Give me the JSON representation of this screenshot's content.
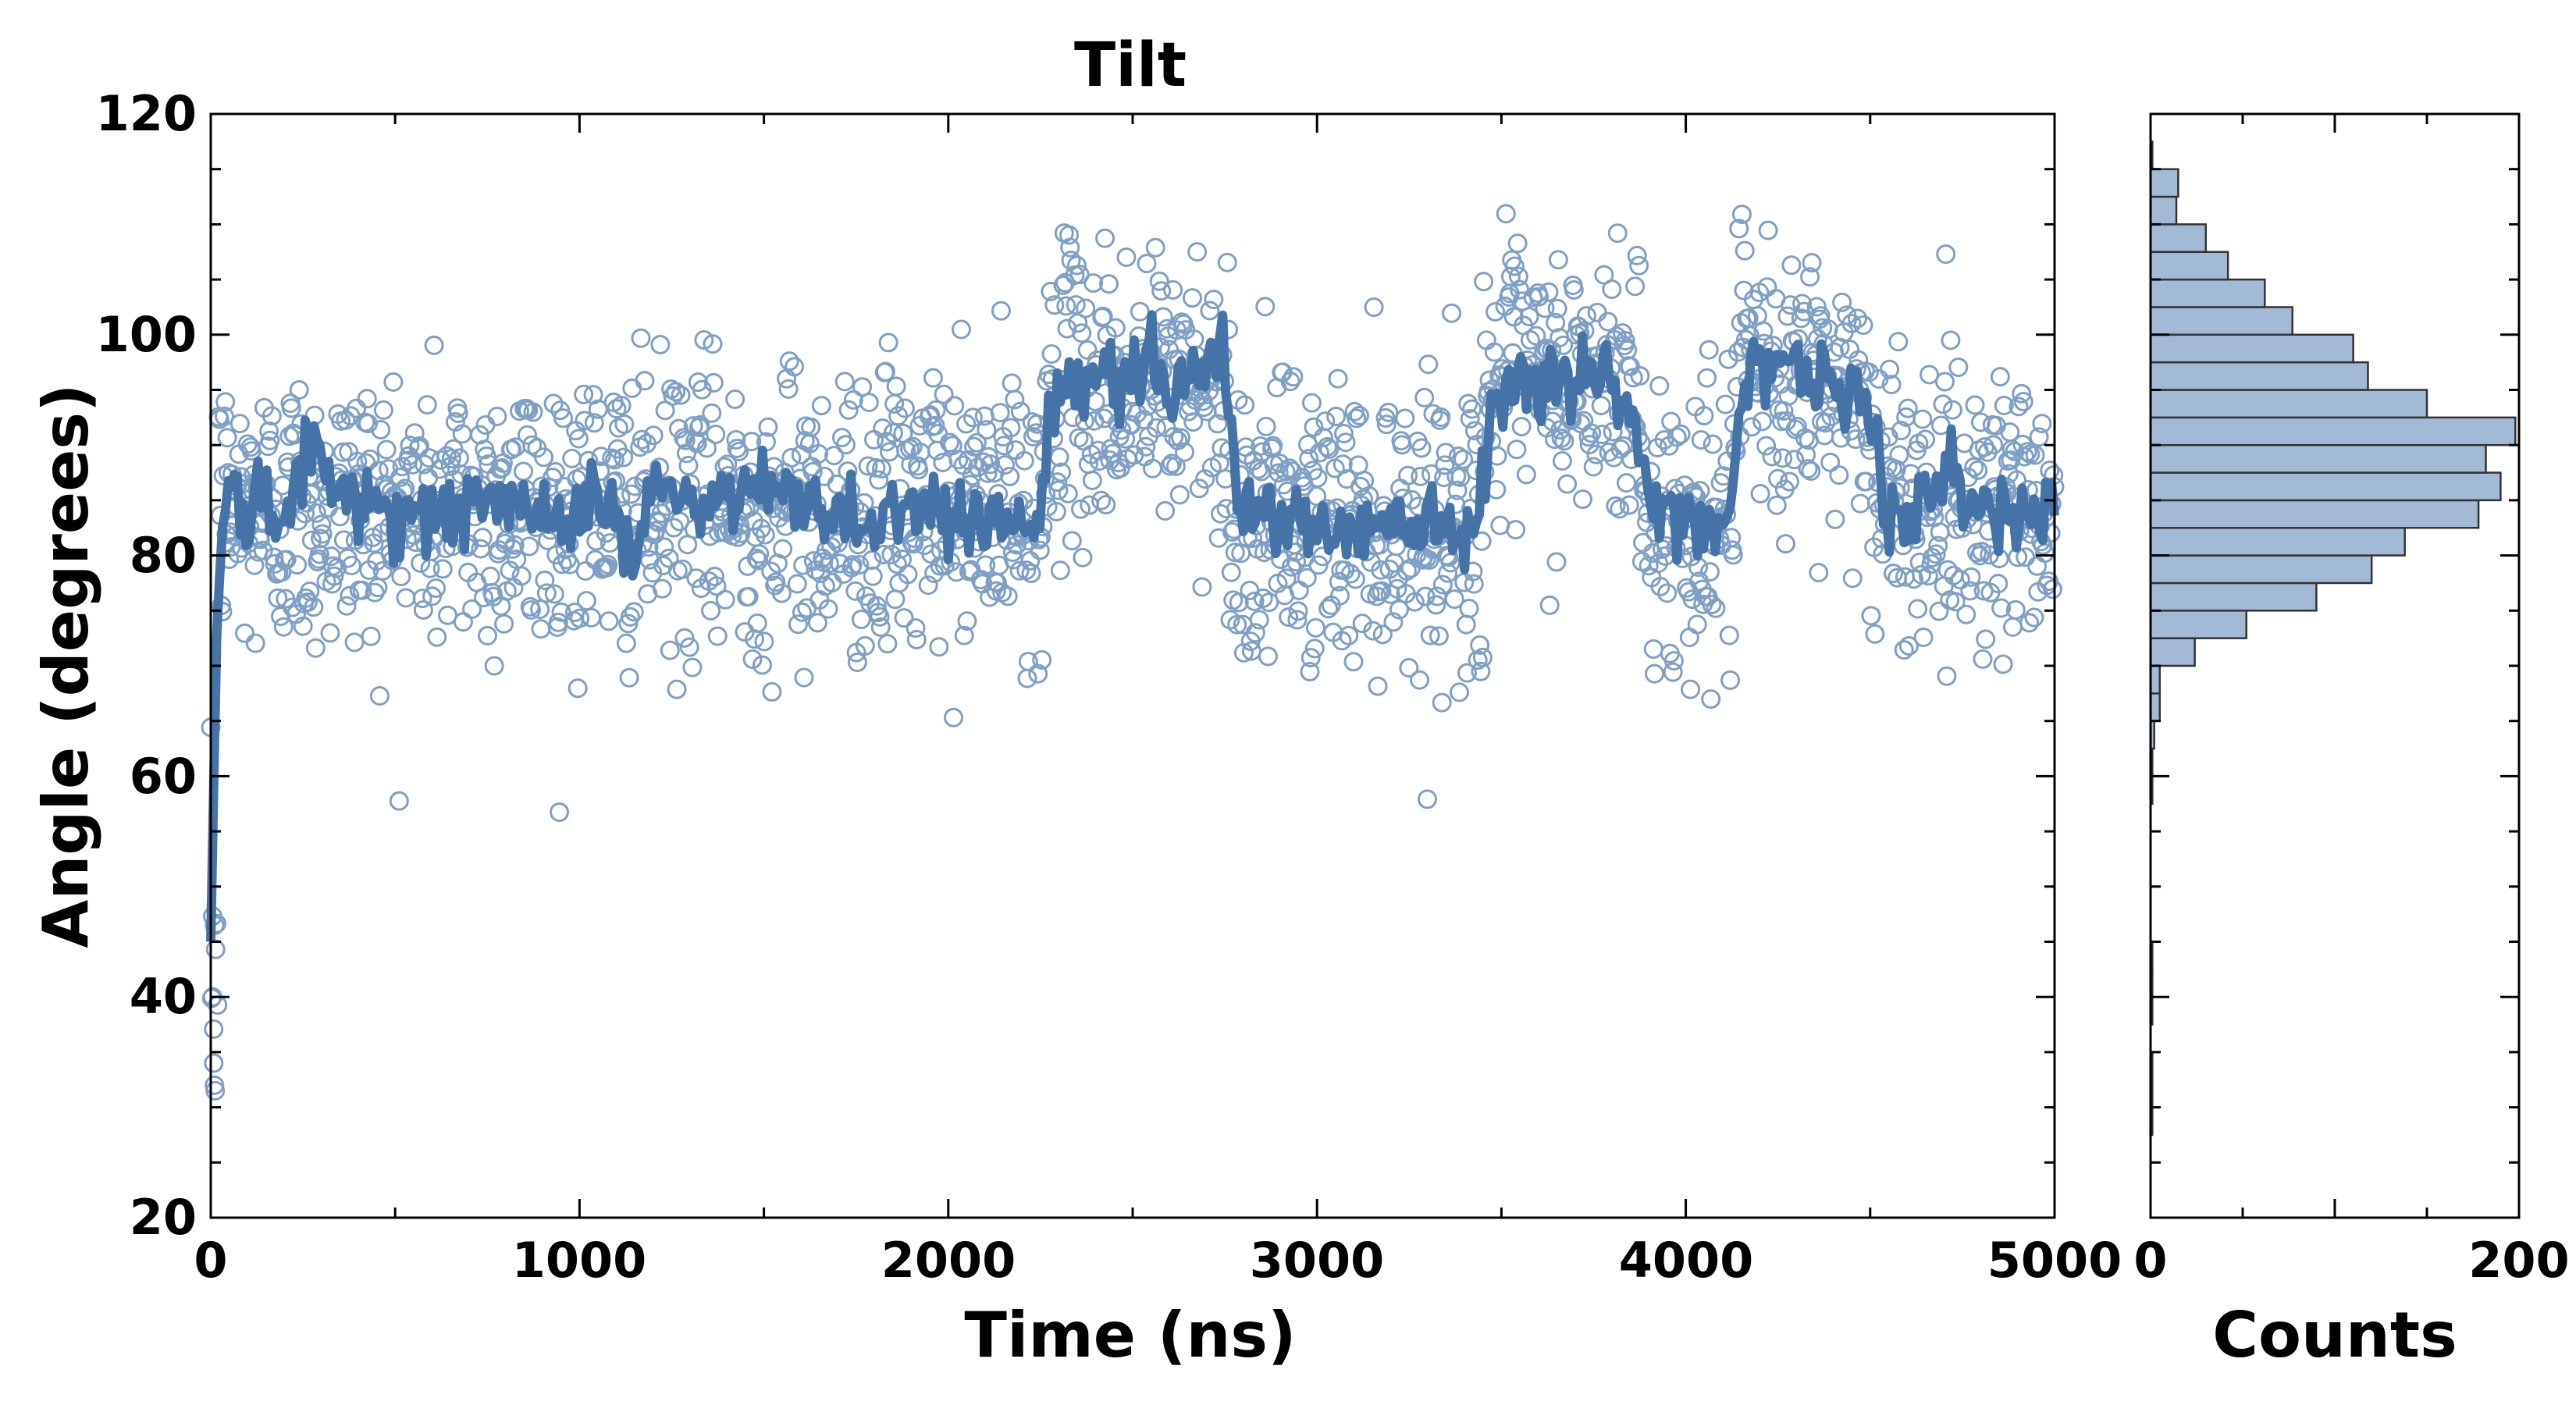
{
  "chart_data": [
    {
      "type": "scatter",
      "title": "Tilt",
      "xlabel": "Time (ns)",
      "ylabel": "Angle (degrees)",
      "xlim": [
        0,
        5000
      ],
      "ylim": [
        20,
        120
      ],
      "xticks": [
        "0",
        "1000",
        "2000",
        "3000",
        "4000",
        "5000"
      ],
      "yticks": [
        "20",
        "40",
        "60",
        "80",
        "100",
        "120"
      ],
      "grid": false,
      "point_color": "#7f9fc4",
      "line_color": "#4573a8",
      "series": [
        {
          "kind": "scatter",
          "note": "raw samples; ~1900 points, piecewise levels as listed (time range in ns, mean angle, spread)",
          "levels": [
            {
              "t": [
                0,
                20
              ],
              "mean": 45,
              "sd": 7
            },
            {
              "t": [
                20,
                2270
              ],
              "mean": 84,
              "sd": 6.5
            },
            {
              "t": [
                2270,
                2760
              ],
              "mean": 95,
              "sd": 6.5
            },
            {
              "t": [
                2760,
                3450
              ],
              "mean": 83,
              "sd": 6.5
            },
            {
              "t": [
                3450,
                3880
              ],
              "mean": 95,
              "sd": 6.5
            },
            {
              "t": [
                3880,
                4130
              ],
              "mean": 83,
              "sd": 6.5
            },
            {
              "t": [
                4130,
                4500
              ],
              "mean": 95,
              "sd": 6.5
            },
            {
              "t": [
                4500,
                5000
              ],
              "mean": 85,
              "sd": 6.5
            }
          ]
        },
        {
          "kind": "line",
          "note": "running average",
          "x": [
            0,
            15,
            30,
            60,
            100,
            150,
            200,
            250,
            300,
            350,
            400,
            450,
            500,
            600,
            700,
            800,
            900,
            1000,
            1100,
            1150,
            1200,
            1300,
            1400,
            1500,
            1600,
            1700,
            1800,
            1900,
            2000,
            2100,
            2200,
            2250,
            2270,
            2300,
            2400,
            2500,
            2550,
            2600,
            2700,
            2750,
            2780,
            2850,
            2950,
            3050,
            3150,
            3250,
            3350,
            3430,
            3480,
            3550,
            3650,
            3750,
            3820,
            3870,
            3900,
            3950,
            4050,
            4120,
            4160,
            4250,
            4350,
            4450,
            4500,
            4550,
            4650,
            4750,
            4850,
            4950,
            5000
          ],
          "y": [
            45,
            72,
            82,
            86,
            84,
            85,
            83,
            88,
            89,
            85,
            86,
            84,
            85,
            83,
            85,
            84,
            84,
            85,
            84,
            79,
            87,
            84,
            85,
            86,
            85,
            84,
            83,
            85,
            84,
            83,
            84,
            82,
            92,
            94,
            96,
            97,
            99,
            95,
            97,
            99,
            85,
            84,
            83,
            82,
            83,
            84,
            83,
            82,
            95,
            97,
            96,
            96,
            95,
            90,
            85,
            84,
            83,
            84,
            97,
            98,
            96,
            94,
            93,
            84,
            85,
            86,
            84,
            84,
            85
          ]
        }
      ]
    },
    {
      "type": "bar",
      "orientation": "horizontal",
      "xlabel": "Counts",
      "ylabel": "",
      "xlim": [
        0,
        200
      ],
      "xticks": [
        "0",
        "200"
      ],
      "bar_color": "#a3bad6",
      "bin_width": 2.5,
      "bins": [
        {
          "y0": 27.5,
          "count": 1
        },
        {
          "y0": 30,
          "count": 1
        },
        {
          "y0": 32.5,
          "count": 1
        },
        {
          "y0": 37.5,
          "count": 1
        },
        {
          "y0": 40,
          "count": 1
        },
        {
          "y0": 42.5,
          "count": 1
        },
        {
          "y0": 57.5,
          "count": 1
        },
        {
          "y0": 60,
          "count": 1
        },
        {
          "y0": 62.5,
          "count": 2
        },
        {
          "y0": 65,
          "count": 5
        },
        {
          "y0": 67.5,
          "count": 5
        },
        {
          "y0": 70,
          "count": 24
        },
        {
          "y0": 72.5,
          "count": 52
        },
        {
          "y0": 75,
          "count": 90
        },
        {
          "y0": 77.5,
          "count": 120
        },
        {
          "y0": 80,
          "count": 138
        },
        {
          "y0": 82.5,
          "count": 178
        },
        {
          "y0": 85,
          "count": 190
        },
        {
          "y0": 87.5,
          "count": 182
        },
        {
          "y0": 90,
          "count": 198
        },
        {
          "y0": 92.5,
          "count": 150
        },
        {
          "y0": 95,
          "count": 118
        },
        {
          "y0": 97.5,
          "count": 110
        },
        {
          "y0": 100,
          "count": 77
        },
        {
          "y0": 102.5,
          "count": 62
        },
        {
          "y0": 105,
          "count": 42
        },
        {
          "y0": 107.5,
          "count": 30
        },
        {
          "y0": 110,
          "count": 14
        },
        {
          "y0": 112.5,
          "count": 15
        },
        {
          "y0": 115,
          "count": 1
        }
      ]
    }
  ]
}
